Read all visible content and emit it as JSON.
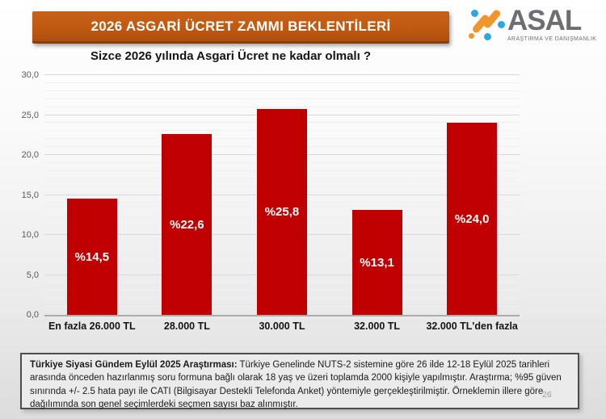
{
  "header": {
    "title": "2026 ASGARİ ÜCRET ZAMMI BEKLENTİLERİ"
  },
  "logo": {
    "name": "ASAL",
    "subtitle": "ARAŞTIRMA VE DANIŞMANLIK",
    "orange": "#F0962D",
    "blue": "#29A8E0",
    "gray": "#6D6E71"
  },
  "chart_data": {
    "type": "bar",
    "title": "Sizce 2026 yılında Asgari Ücret ne kadar olmalı ?",
    "categories": [
      "En fazla 26.000 TL",
      "28.000 TL",
      "30.000 TL",
      "32.000 TL",
      "32.000 TL'den fazla"
    ],
    "values": [
      14.5,
      22.6,
      25.8,
      13.1,
      24.0
    ],
    "value_labels": [
      "%14,5",
      "%22,6",
      "%25,8",
      "%13,1",
      "%24,0"
    ],
    "xlabel": "",
    "ylabel": "",
    "ylim": [
      0,
      30
    ],
    "ytick_step": 5,
    "ytick_labels": [
      "0,0",
      "5,0",
      "10,0",
      "15,0",
      "20,0",
      "25,0",
      "30,0"
    ],
    "grid": true,
    "legend": false,
    "bar_color": "#C00000"
  },
  "footer": {
    "bold": "Türkiye Siyasi Gündem Eylül 2025 Araştırması:",
    "text": " Türkiye Genelinde  NUTS-2 sistemine göre 26 ilde 12-18 Eylül 2025 tarihleri arasında önceden  hazırlanmış soru formuna bağlı olarak 18 yaş ve üzeri toplamda 2000 kişiyle yapılmıştır. Araştırma; %95 güven sınırında +/- 2.5 hata payı ile CATI (Bilgisayar Destekli Telefonda  Anket) yöntemiyle gerçekleştirilmiştir. Örneklemin illere göre dağılımında son genel seçimlerdeki  seçmen sayısı baz alınmıştır.",
    "page_number": "26"
  }
}
